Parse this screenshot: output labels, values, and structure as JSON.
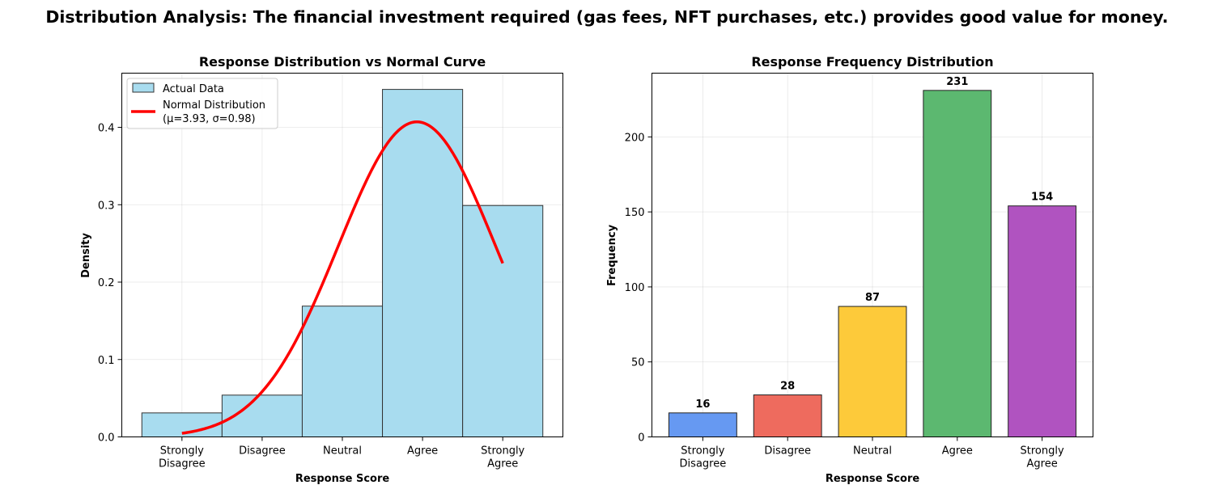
{
  "suptitle": "Distribution Analysis: The financial investment required (gas fees, NFT purchases, etc.) provides good value for money.",
  "chart_data": [
    {
      "type": "bar",
      "title": "Response Distribution vs Normal Curve",
      "xlabel": "Response Score",
      "ylabel": "Density",
      "categories": [
        "Strongly\nDisagree",
        "Disagree",
        "Neutral",
        "Agree",
        "Strongly\nAgree"
      ],
      "x": [
        1,
        2,
        3,
        4,
        5
      ],
      "xlim": [
        0.25,
        5.75
      ],
      "ylim": [
        0,
        0.47
      ],
      "yticks": [
        0.0,
        0.1,
        0.2,
        0.3,
        0.4
      ],
      "ytick_labels": [
        "0.0",
        "0.1",
        "0.2",
        "0.3",
        "0.4"
      ],
      "grid": true,
      "legend": "top-left",
      "series": [
        {
          "name": "Actual Data",
          "type": "bar",
          "color": "#a8dcef",
          "values": [
            0.031,
            0.054,
            0.169,
            0.449,
            0.299
          ]
        },
        {
          "name": "Normal Distribution\n(μ=3.93, σ=0.98)",
          "type": "line",
          "color": "#ff0000",
          "mu": 3.93,
          "sigma": 0.98,
          "x_range": [
            1,
            5
          ]
        }
      ]
    },
    {
      "type": "bar",
      "title": "Response Frequency Distribution",
      "xlabel": "Response Score",
      "ylabel": "Frequency",
      "categories": [
        "Strongly\nDisagree",
        "Disagree",
        "Neutral",
        "Agree",
        "Strongly\nAgree"
      ],
      "values": [
        16,
        28,
        87,
        231,
        154
      ],
      "data_labels": [
        "16",
        "28",
        "87",
        "231",
        "154"
      ],
      "colors": [
        "#6699f2",
        "#ee6b5e",
        "#fdca3a",
        "#5cb870",
        "#b053c0"
      ],
      "ylim": [
        0,
        242.5
      ],
      "yticks": [
        0,
        50,
        100,
        150,
        200
      ],
      "ytick_labels": [
        "0",
        "50",
        "100",
        "150",
        "200"
      ],
      "grid": true
    }
  ]
}
